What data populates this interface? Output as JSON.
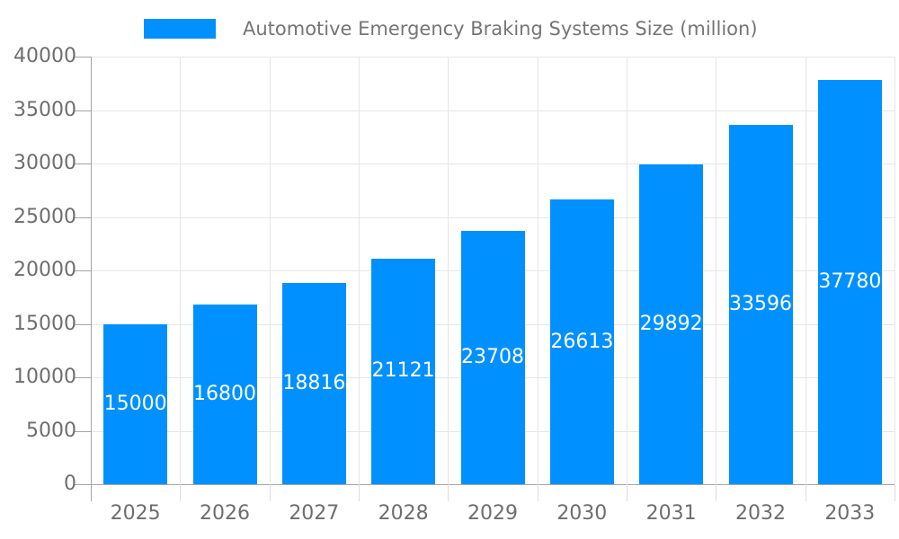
{
  "legend": {
    "label": "Automotive Emergency Braking Systems Size (million)"
  },
  "chart_data": {
    "type": "bar",
    "title": "Automotive Emergency Braking Systems Size (million)",
    "categories": [
      "2025",
      "2026",
      "2027",
      "2028",
      "2029",
      "2030",
      "2031",
      "2032",
      "2033"
    ],
    "values": [
      15000,
      16800,
      18816,
      21121,
      23708,
      26613,
      29892,
      33596,
      37780
    ],
    "series": [
      {
        "name": "Automotive Emergency Braking Systems Size (million)",
        "values": [
          15000,
          16800,
          18816,
          21121,
          23708,
          26613,
          29892,
          33596,
          37780
        ]
      }
    ],
    "xlabel": "",
    "ylabel": "",
    "ylim": [
      0,
      40000
    ],
    "yticks": [
      0,
      5000,
      10000,
      15000,
      20000,
      25000,
      30000,
      35000,
      40000
    ],
    "grid": true,
    "legend_position": "top",
    "value_labels": "inside-center"
  },
  "colors": {
    "bar": "#0190ff",
    "bar_label": "#ffffff",
    "axis_text": "#6e6e6e",
    "title_text": "#757575",
    "grid": "#e6e6e6",
    "axis_line": "#a6a6a6",
    "tick": "#dcdcdc",
    "background": "#ffffff"
  }
}
